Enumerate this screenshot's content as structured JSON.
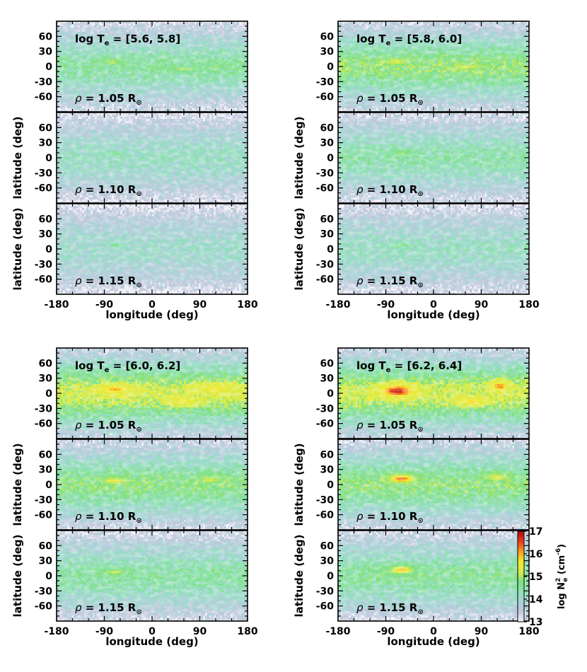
{
  "chart_data": {
    "type": "heatmap",
    "description_units": "log Ne^2 (cm^-6) emission-measure maps, longitude vs latitude",
    "xlabel": "longitude (deg)",
    "ylabel": "latitude (deg)",
    "xlim": [
      -180,
      180
    ],
    "ylim": [
      -90,
      90
    ],
    "xticks": [
      "-180",
      "-90",
      "0",
      "90",
      "180"
    ],
    "yticks": [
      "60",
      "30",
      "0",
      "-30",
      "-60"
    ],
    "colorbar": {
      "label_base": "log N",
      "label_sub": "e",
      "label_sup": "2",
      "label_units": " (cm",
      "label_units_sup": "-6",
      "label_close": ")",
      "ticks": [
        "17",
        "16",
        "15",
        "14",
        "13"
      ],
      "range": [
        13,
        17
      ],
      "stops": [
        "#f3f1f8",
        "#c2c8dd",
        "#a9d3d8",
        "#8fe0b9",
        "#7fe07f",
        "#d8ec4a",
        "#f5e830",
        "#f79a22",
        "#e83a1c",
        "#b20a0a"
      ]
    },
    "panels": [
      {
        "temp_label": "[5.6, 5.8]",
        "rows": [
          {
            "rho": "1.05",
            "level": 0.38,
            "hot": [
              [
                -75,
                10,
                14,
                3,
                0.55
              ],
              [
                60,
                -5,
                22,
                3,
                0.5
              ],
              [
                120,
                0,
                15,
                3,
                0.45
              ]
            ]
          },
          {
            "rho": "1.10",
            "level": 0.3,
            "hot": [
              [
                -70,
                10,
                10,
                2,
                0.5
              ]
            ]
          },
          {
            "rho": "1.15",
            "level": 0.27,
            "hot": [
              [
                -70,
                8,
                8,
                2,
                0.45
              ]
            ]
          }
        ]
      },
      {
        "temp_label": "[5.8, 6.0]",
        "rows": [
          {
            "rho": "1.05",
            "level": 0.46,
            "hot": [
              [
                -70,
                10,
                12,
                3,
                0.6
              ],
              [
                60,
                0,
                20,
                3,
                0.55
              ]
            ]
          },
          {
            "rho": "1.10",
            "level": 0.36,
            "hot": [
              [
                -60,
                10,
                15,
                3,
                0.5
              ]
            ]
          },
          {
            "rho": "1.15",
            "level": 0.3,
            "hot": [
              [
                -60,
                8,
                15,
                3,
                0.45
              ]
            ]
          }
        ]
      },
      {
        "temp_label": "[6.0, 6.2]",
        "rows": [
          {
            "rho": "1.05",
            "level": 0.56,
            "hot": [
              [
                -70,
                8,
                18,
                5,
                0.75
              ],
              [
                120,
                10,
                22,
                5,
                0.65
              ],
              [
                60,
                -15,
                15,
                4,
                0.65
              ]
            ]
          },
          {
            "rho": "1.10",
            "level": 0.44,
            "hot": [
              [
                -70,
                8,
                14,
                4,
                0.62
              ],
              [
                110,
                10,
                15,
                4,
                0.55
              ]
            ]
          },
          {
            "rho": "1.15",
            "level": 0.38,
            "hot": [
              [
                -70,
                8,
                14,
                4,
                0.55
              ]
            ]
          }
        ]
      },
      {
        "temp_label": "[6.2, 6.4]",
        "rows": [
          {
            "rho": "1.05",
            "level": 0.56,
            "hot": [
              [
                -68,
                5,
                20,
                7,
                0.97
              ],
              [
                125,
                15,
                10,
                5,
                0.82
              ],
              [
                70,
                -15,
                15,
                4,
                0.72
              ]
            ]
          },
          {
            "rho": "1.10",
            "level": 0.45,
            "hot": [
              [
                -60,
                12,
                15,
                5,
                0.85
              ],
              [
                120,
                15,
                12,
                4,
                0.6
              ]
            ]
          },
          {
            "rho": "1.15",
            "level": 0.4,
            "hot": [
              [
                -60,
                12,
                15,
                5,
                0.72
              ]
            ]
          }
        ]
      }
    ]
  },
  "labels": {
    "temp_prefix": "log T",
    "temp_sub": "e",
    "temp_eq": " = ",
    "rho_prefix": "ρ = ",
    "rho_unit": " R",
    "rho_sun": "⊙"
  }
}
